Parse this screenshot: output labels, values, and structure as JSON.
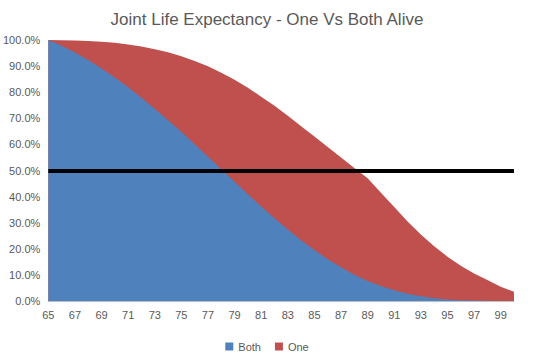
{
  "chart_data": {
    "type": "area",
    "title": "Joint Life Expectancy - One Vs Both Alive",
    "categories": [
      65,
      null,
      67,
      null,
      69,
      null,
      71,
      null,
      73,
      null,
      75,
      null,
      77,
      null,
      79,
      null,
      81,
      null,
      83,
      null,
      85,
      null,
      87,
      null,
      89,
      null,
      91,
      null,
      93,
      null,
      95,
      null,
      97,
      null,
      99,
      null
    ],
    "series": [
      {
        "name": "Both",
        "color": "#4f81bd",
        "values": [
          100,
          97.8,
          95.2,
          92.3,
          89.1,
          85.6,
          81.9,
          77.9,
          73.7,
          69.3,
          64.8,
          60.1,
          55.3,
          50.5,
          45.7,
          40.9,
          36.2,
          31.7,
          27.4,
          23.3,
          19.5,
          16.0,
          12.9,
          10.1,
          7.7,
          5.7,
          4.1,
          2.8,
          1.8,
          1.1,
          0.6,
          0.3,
          0.2,
          0.1,
          0,
          0
        ]
      },
      {
        "name": "One",
        "color": "#c0504d",
        "values": [
          100,
          99.9,
          99.8,
          99.6,
          99.3,
          98.9,
          98.3,
          97.5,
          96.5,
          95.3,
          93.8,
          92.0,
          89.9,
          87.5,
          84.8,
          81.7,
          78.3,
          74.8,
          71.0,
          67.0,
          63.0,
          59.0,
          55.0,
          51.0,
          47.0,
          41.5,
          36.0,
          30.5,
          25.5,
          21.0,
          17.0,
          13.5,
          10.5,
          8.0,
          5.5,
          3.5
        ]
      }
    ],
    "ylim": [
      0,
      100
    ],
    "yticks": [
      {
        "value": 0,
        "label": "0.0%"
      },
      {
        "value": 10,
        "label": "10.0%"
      },
      {
        "value": 20,
        "label": "20.0%"
      },
      {
        "value": 30,
        "label": "30.0%"
      },
      {
        "value": 40,
        "label": "40.0%"
      },
      {
        "value": 50,
        "label": "50.0%"
      },
      {
        "value": 60,
        "label": "60.0%"
      },
      {
        "value": 70,
        "label": "70.0%"
      },
      {
        "value": 80,
        "label": "80.0%"
      },
      {
        "value": 90,
        "label": "90.0%"
      },
      {
        "value": 100,
        "label": "100.0%"
      }
    ],
    "reference_line": {
      "y": 50,
      "color": "#000000"
    },
    "grid": false,
    "legend": "bottom"
  }
}
